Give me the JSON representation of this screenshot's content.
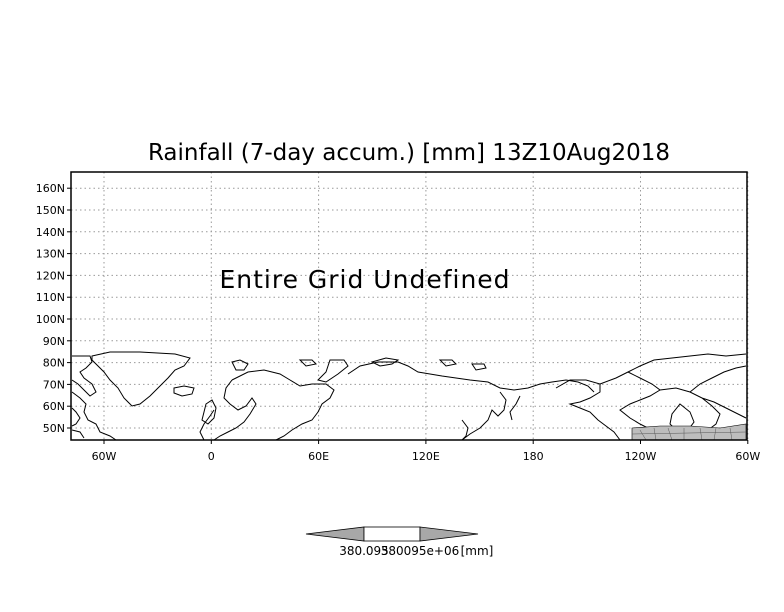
{
  "map": {
    "title": "Rainfall (7-day accum.) [mm] 13Z10Aug2018",
    "message": "Entire Grid Undefined",
    "lat_ticks": [
      "50N",
      "60N",
      "70N",
      "80N",
      "90N",
      "100N",
      "110N",
      "120N",
      "130N",
      "140N",
      "150N",
      "160N"
    ],
    "lon_ticks": [
      "60W",
      "0",
      "60E",
      "120E",
      "180",
      "120W",
      "60W"
    ],
    "colors": {
      "frame": "#000000",
      "grid": "#9a9a9a",
      "coast": "#000000",
      "colorbar_arrow": "#a8a8a8",
      "colorbar_mid": "#ffffff",
      "shaded": "#bdbdbd"
    }
  },
  "colorbar": {
    "label_left": "380.095",
    "label_right": "380095e+06",
    "unit": "[mm]"
  }
}
